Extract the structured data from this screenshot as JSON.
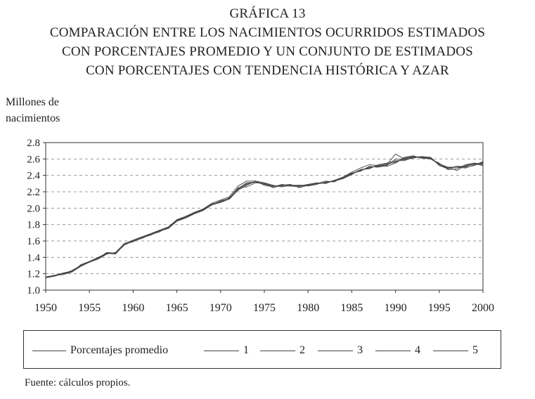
{
  "title_lines": [
    "GRÁFICA 13",
    "COMPARACIÓN ENTRE LOS NACIMIENTOS OCURRIDOS ESTIMADOS",
    "CON PORCENTAJES PROMEDIO Y UN CONJUNTO DE ESTIMADOS",
    "CON PORCENTAJES CON TENDENCIA HISTÓRICA Y AZAR"
  ],
  "source": "Fuente: cálculos propios.",
  "colors": {
    "line": "#444444",
    "axis": "#333333",
    "grid": "#999999"
  },
  "chart_data": {
    "type": "line",
    "title": "COMPARACIÓN ENTRE LOS NACIMIENTOS OCURRIDOS ESTIMADOS CON PORCENTAJES PROMEDIO Y UN CONJUNTO DE ESTIMADOS CON PORCENTAJES CON TENDENCIA HISTÓRICA Y AZAR",
    "ylabel_lines": [
      "Millones de",
      "nacimientos"
    ],
    "xlabel": "",
    "xlim": [
      1950,
      2000
    ],
    "ylim": [
      1.0,
      2.8
    ],
    "grid": "horizontal-dashed",
    "legend_position": "bottom",
    "xticks": [
      "1950",
      "1955",
      "1960",
      "1965",
      "1970",
      "1975",
      "1980",
      "1985",
      "1990",
      "1995",
      "2000"
    ],
    "yticks": [
      "1.0",
      "1.2",
      "1.4",
      "1.6",
      "1.8",
      "2.0",
      "2.2",
      "2.4",
      "2.6",
      "2.8"
    ],
    "x": [
      1950,
      1951,
      1952,
      1953,
      1954,
      1955,
      1956,
      1957,
      1958,
      1959,
      1960,
      1961,
      1962,
      1963,
      1964,
      1965,
      1966,
      1967,
      1968,
      1969,
      1970,
      1971,
      1972,
      1973,
      1974,
      1975,
      1976,
      1977,
      1978,
      1979,
      1980,
      1981,
      1982,
      1983,
      1984,
      1985,
      1986,
      1987,
      1988,
      1989,
      1990,
      1991,
      1992,
      1993,
      1994,
      1995,
      1996,
      1997,
      1998,
      1999,
      2000
    ],
    "series": [
      {
        "name": "Porcentajes promedio",
        "values": [
          1.16,
          1.18,
          1.2,
          1.23,
          1.3,
          1.35,
          1.39,
          1.45,
          1.45,
          1.56,
          1.6,
          1.64,
          1.68,
          1.72,
          1.76,
          1.85,
          1.89,
          1.94,
          1.98,
          2.05,
          2.08,
          2.12,
          2.24,
          2.29,
          2.32,
          2.3,
          2.27,
          2.28,
          2.28,
          2.27,
          2.28,
          2.3,
          2.31,
          2.33,
          2.37,
          2.42,
          2.46,
          2.5,
          2.51,
          2.53,
          2.57,
          2.6,
          2.62,
          2.62,
          2.61,
          2.53,
          2.49,
          2.5,
          2.51,
          2.54,
          2.55
        ]
      },
      {
        "name": "1",
        "values": [
          1.15,
          1.17,
          1.2,
          1.22,
          1.29,
          1.34,
          1.38,
          1.44,
          1.46,
          1.57,
          1.61,
          1.65,
          1.69,
          1.73,
          1.77,
          1.86,
          1.9,
          1.95,
          1.99,
          2.06,
          2.1,
          2.14,
          2.27,
          2.33,
          2.33,
          2.28,
          2.26,
          2.29,
          2.27,
          2.26,
          2.29,
          2.31,
          2.3,
          2.34,
          2.38,
          2.44,
          2.49,
          2.53,
          2.52,
          2.51,
          2.55,
          2.62,
          2.64,
          2.61,
          2.6,
          2.55,
          2.47,
          2.48,
          2.53,
          2.55,
          2.53
        ]
      },
      {
        "name": "2",
        "values": [
          1.16,
          1.18,
          1.21,
          1.23,
          1.3,
          1.34,
          1.39,
          1.45,
          1.45,
          1.55,
          1.6,
          1.64,
          1.67,
          1.72,
          1.75,
          1.84,
          1.88,
          1.93,
          1.97,
          2.04,
          2.07,
          2.11,
          2.22,
          2.28,
          2.33,
          2.31,
          2.28,
          2.26,
          2.28,
          2.28,
          2.27,
          2.29,
          2.32,
          2.33,
          2.36,
          2.41,
          2.47,
          2.48,
          2.53,
          2.55,
          2.58,
          2.58,
          2.62,
          2.63,
          2.62,
          2.52,
          2.48,
          2.51,
          2.5,
          2.52,
          2.57
        ]
      },
      {
        "name": "3",
        "values": [
          1.15,
          1.18,
          1.19,
          1.22,
          1.31,
          1.35,
          1.38,
          1.45,
          1.44,
          1.56,
          1.59,
          1.64,
          1.68,
          1.71,
          1.77,
          1.85,
          1.9,
          1.94,
          1.99,
          2.04,
          2.09,
          2.12,
          2.25,
          2.26,
          2.31,
          2.3,
          2.25,
          2.28,
          2.29,
          2.25,
          2.28,
          2.3,
          2.33,
          2.32,
          2.38,
          2.43,
          2.45,
          2.51,
          2.5,
          2.52,
          2.6,
          2.59,
          2.61,
          2.63,
          2.6,
          2.54,
          2.5,
          2.46,
          2.52,
          2.55,
          2.54
        ]
      },
      {
        "name": "4",
        "values": [
          1.16,
          1.17,
          1.2,
          1.24,
          1.3,
          1.35,
          1.4,
          1.45,
          1.45,
          1.56,
          1.6,
          1.63,
          1.68,
          1.72,
          1.76,
          1.85,
          1.88,
          1.94,
          1.98,
          2.05,
          2.07,
          2.13,
          2.23,
          2.3,
          2.32,
          2.29,
          2.27,
          2.27,
          2.27,
          2.28,
          2.28,
          2.3,
          2.31,
          2.33,
          2.37,
          2.42,
          2.47,
          2.49,
          2.52,
          2.54,
          2.56,
          2.61,
          2.63,
          2.61,
          2.62,
          2.53,
          2.5,
          2.5,
          2.49,
          2.53,
          2.56
        ]
      },
      {
        "name": "5",
        "values": [
          1.16,
          1.18,
          1.2,
          1.23,
          1.29,
          1.35,
          1.39,
          1.46,
          1.45,
          1.56,
          1.6,
          1.65,
          1.68,
          1.73,
          1.76,
          1.86,
          1.89,
          1.94,
          1.98,
          2.05,
          2.08,
          2.12,
          2.24,
          2.31,
          2.32,
          2.3,
          2.27,
          2.28,
          2.28,
          2.27,
          2.29,
          2.3,
          2.31,
          2.34,
          2.37,
          2.42,
          2.46,
          2.5,
          2.51,
          2.53,
          2.66,
          2.6,
          2.63,
          2.62,
          2.61,
          2.53,
          2.49,
          2.51,
          2.51,
          2.54,
          2.52
        ]
      }
    ]
  }
}
